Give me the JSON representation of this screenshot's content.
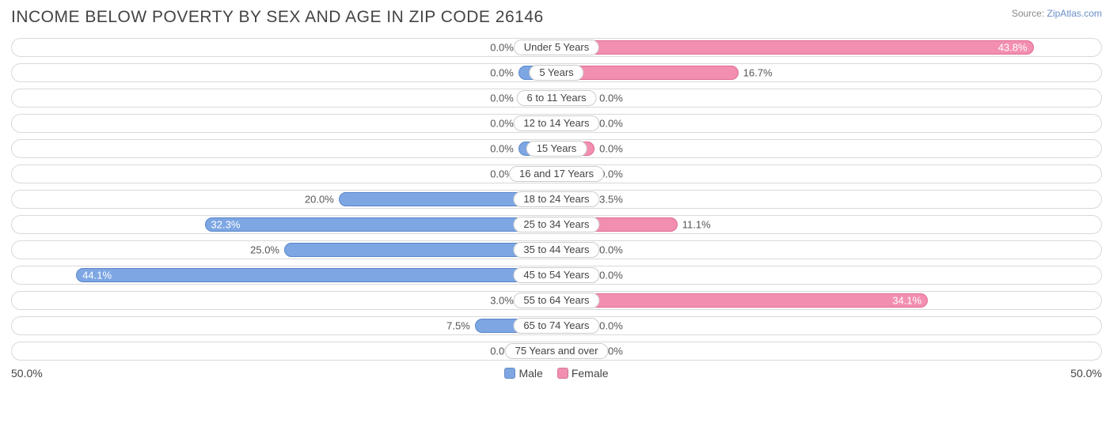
{
  "title": "INCOME BELOW POVERTY BY SEX AND AGE IN ZIP CODE 26146",
  "source_prefix": "Source: ",
  "source_link": "ZipAtlas.com",
  "chart": {
    "type": "diverging-bar",
    "axis_max": 50.0,
    "axis_label_left": "50.0%",
    "axis_label_right": "50.0%",
    "male_min_pct": 7.0,
    "female_min_pct": 7.0,
    "track_border_color": "#d9d9d9",
    "track_bg": "#ffffff",
    "male_fill": "#7da6e3",
    "male_border": "#5a87c9",
    "female_fill": "#f28fb1",
    "female_border": "#e26797",
    "label_font_size": 13,
    "label_color": "#555555",
    "category_bg": "#ffffff",
    "category_border": "#cccccc",
    "inside_threshold": 30.0,
    "legend": {
      "male": "Male",
      "female": "Female"
    },
    "rows": [
      {
        "category": "Under 5 Years",
        "male": 0.0,
        "female": 43.8,
        "male_label": "0.0%",
        "female_label": "43.8%"
      },
      {
        "category": "5 Years",
        "male": 0.0,
        "female": 16.7,
        "male_label": "0.0%",
        "female_label": "16.7%"
      },
      {
        "category": "6 to 11 Years",
        "male": 0.0,
        "female": 0.0,
        "male_label": "0.0%",
        "female_label": "0.0%"
      },
      {
        "category": "12 to 14 Years",
        "male": 0.0,
        "female": 0.0,
        "male_label": "0.0%",
        "female_label": "0.0%"
      },
      {
        "category": "15 Years",
        "male": 0.0,
        "female": 0.0,
        "male_label": "0.0%",
        "female_label": "0.0%"
      },
      {
        "category": "16 and 17 Years",
        "male": 0.0,
        "female": 0.0,
        "male_label": "0.0%",
        "female_label": "0.0%"
      },
      {
        "category": "18 to 24 Years",
        "male": 20.0,
        "female": 3.5,
        "male_label": "20.0%",
        "female_label": "3.5%"
      },
      {
        "category": "25 to 34 Years",
        "male": 32.3,
        "female": 11.1,
        "male_label": "32.3%",
        "female_label": "11.1%"
      },
      {
        "category": "35 to 44 Years",
        "male": 25.0,
        "female": 0.0,
        "male_label": "25.0%",
        "female_label": "0.0%"
      },
      {
        "category": "45 to 54 Years",
        "male": 44.1,
        "female": 0.0,
        "male_label": "44.1%",
        "female_label": "0.0%"
      },
      {
        "category": "55 to 64 Years",
        "male": 3.0,
        "female": 34.1,
        "male_label": "3.0%",
        "female_label": "34.1%"
      },
      {
        "category": "65 to 74 Years",
        "male": 7.5,
        "female": 0.0,
        "male_label": "7.5%",
        "female_label": "0.0%"
      },
      {
        "category": "75 Years and over",
        "male": 0.0,
        "female": 0.0,
        "male_label": "0.0%",
        "female_label": "0.0%"
      }
    ]
  }
}
